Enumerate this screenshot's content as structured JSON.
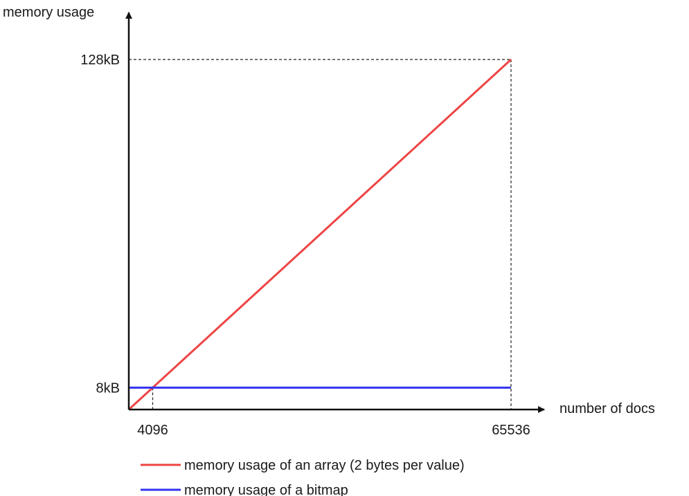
{
  "chart_data": {
    "type": "line",
    "title": "",
    "xlabel": "number of docs",
    "ylabel": "memory usage",
    "xlim": [
      0,
      65536
    ],
    "ylim": [
      0,
      128
    ],
    "x_ticks": [
      {
        "value": 4096,
        "label": "4096"
      },
      {
        "value": 65536,
        "label": "65536"
      }
    ],
    "y_ticks": [
      {
        "value": 8,
        "label": "8kB"
      },
      {
        "value": 128,
        "label": "128kB"
      }
    ],
    "guide_lines": [
      {
        "x": 4096,
        "y": 8
      },
      {
        "x": 65536,
        "y": 128
      }
    ],
    "series": [
      {
        "name": "memory usage of an array (2 bytes per value)",
        "color": "#ee4444",
        "points": [
          [
            0,
            0
          ],
          [
            65536,
            128
          ]
        ]
      },
      {
        "name": "memory usage of a bitmap",
        "color": "#3333ee",
        "points": [
          [
            0,
            8
          ],
          [
            65536,
            8
          ]
        ]
      }
    ],
    "grid": false,
    "legend_position": "bottom"
  }
}
